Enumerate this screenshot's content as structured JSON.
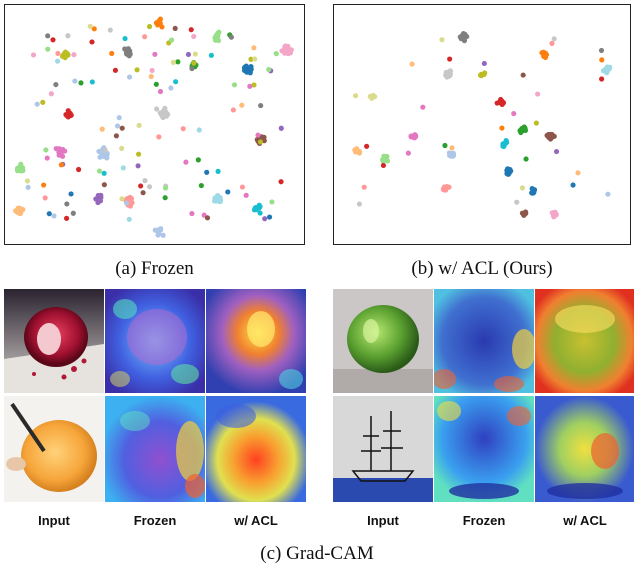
{
  "figure": {
    "captions": {
      "a": "(a) Frozen",
      "b": "(b) w/ ACL (Ours)",
      "c": "(c) Grad-CAM"
    },
    "column_labels": [
      "Input",
      "Frozen",
      "w/ ACL",
      "Input",
      "Frozen",
      "w/ ACL"
    ]
  },
  "colors": {
    "clusters": [
      "#f4a6c8",
      "#8c564b",
      "#17becf",
      "#ff7f0e",
      "#1f77b4",
      "#2ca02c",
      "#d62728",
      "#9467bd",
      "#c7c7c7",
      "#7f7f7f",
      "#bcbd22",
      "#aec7e8",
      "#ff9896",
      "#98df8a",
      "#ffbb78",
      "#dbdb8d",
      "#e377c2",
      "#9edae5"
    ]
  }
}
